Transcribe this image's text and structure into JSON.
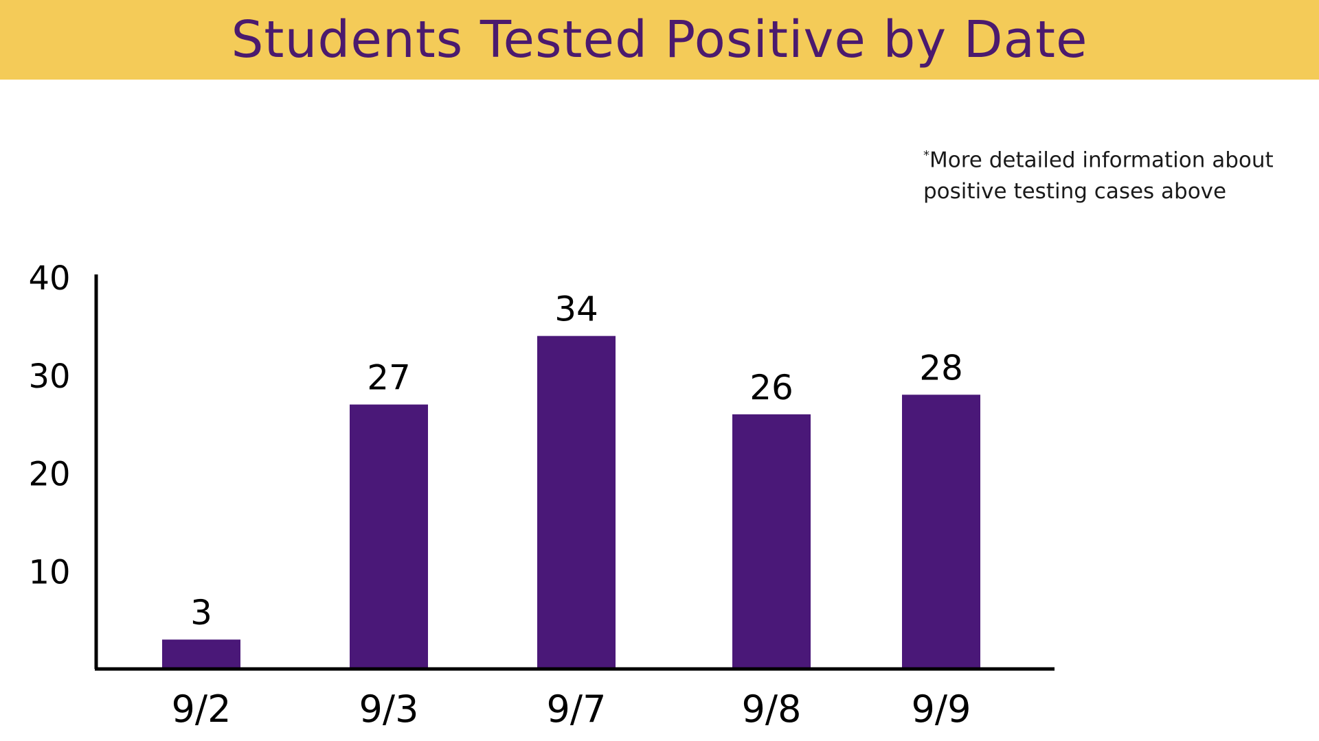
{
  "title": "Students Tested Positive by Date",
  "note": {
    "marker": "*",
    "text_line1": "More detailed information about",
    "text_line2": "positive testing cases above"
  },
  "colors": {
    "banner_bg": "#f4cb58",
    "title_text": "#4b1a6e",
    "bar": "#4a1878",
    "axis": "#000000"
  },
  "chart_data": {
    "type": "bar",
    "title": "Students Tested Positive by Date",
    "xlabel": "",
    "ylabel": "",
    "categories": [
      "9/2",
      "9/3",
      "9/7",
      "9/8",
      "9/9"
    ],
    "values": [
      3,
      27,
      34,
      26,
      28
    ],
    "data_labels": [
      "3",
      "27",
      "34",
      "26",
      "28"
    ],
    "y_ticks": [
      10,
      20,
      30,
      40
    ],
    "ylim": [
      0,
      40
    ],
    "grid": false,
    "legend": "none"
  }
}
